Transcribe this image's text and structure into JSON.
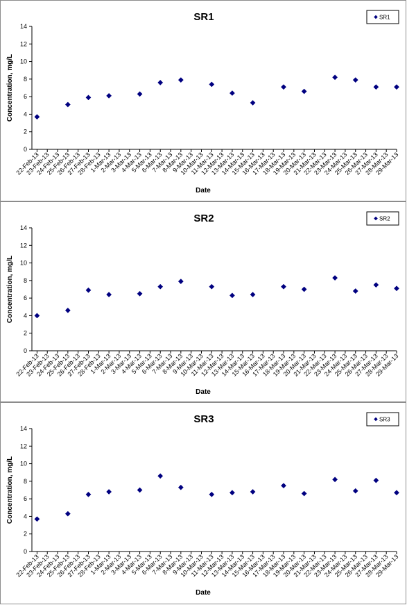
{
  "chart_data": [
    {
      "type": "scatter",
      "title": "SR1",
      "xlabel": "Date",
      "ylabel": "Concentration, mg/L",
      "ylim": [
        0,
        14
      ],
      "yticks": [
        "0",
        "2",
        "4",
        "6",
        "8",
        "10",
        "12",
        "14"
      ],
      "grid": false,
      "legend_position": "top-right",
      "marker_color": "#000080",
      "x_ticks": [
        "22-Feb-13",
        "23-Feb-13",
        "24-Feb-13",
        "25-Feb-13",
        "26-Feb-13",
        "27-Feb-13",
        "28-Feb-13",
        "1-Mar-13",
        "2-Mar-13",
        "3-Mar-13",
        "4-Mar-13",
        "5-Mar-13",
        "6-Mar-13",
        "7-Mar-13",
        "8-Mar-13",
        "9-Mar-13",
        "10-Mar-13",
        "11-Mar-13",
        "12-Mar-13",
        "13-Mar-13",
        "14-Mar-13",
        "15-Mar-13",
        "16-Mar-13",
        "17-Mar-13",
        "18-Mar-13",
        "19-Mar-13",
        "20-Mar-13",
        "21-Mar-13",
        "22-Mar-13",
        "23-Mar-13",
        "24-Mar-13",
        "25-Mar-13",
        "26-Mar-13",
        "27-Mar-13",
        "28-Mar-13",
        "29-Mar-13"
      ],
      "series": [
        {
          "name": "SR1",
          "points": [
            {
              "x": "22-Feb-13",
              "y": 3.7
            },
            {
              "x": "25-Feb-13",
              "y": 5.1
            },
            {
              "x": "27-Feb-13",
              "y": 5.9
            },
            {
              "x": "1-Mar-13",
              "y": 6.1
            },
            {
              "x": "4-Mar-13",
              "y": 6.3
            },
            {
              "x": "6-Mar-13",
              "y": 7.6
            },
            {
              "x": "8-Mar-13",
              "y": 7.9
            },
            {
              "x": "11-Mar-13",
              "y": 7.4
            },
            {
              "x": "13-Mar-13",
              "y": 6.4
            },
            {
              "x": "15-Mar-13",
              "y": 5.3
            },
            {
              "x": "18-Mar-13",
              "y": 7.1
            },
            {
              "x": "20-Mar-13",
              "y": 6.6
            },
            {
              "x": "23-Mar-13",
              "y": 8.2
            },
            {
              "x": "25-Mar-13",
              "y": 7.9
            },
            {
              "x": "27-Mar-13",
              "y": 7.1
            },
            {
              "x": "29-Mar-13",
              "y": 7.1
            }
          ]
        }
      ]
    },
    {
      "type": "scatter",
      "title": "SR2",
      "xlabel": "Date",
      "ylabel": "Concentration, mg/L",
      "ylim": [
        0,
        14
      ],
      "yticks": [
        "0",
        "2",
        "4",
        "6",
        "8",
        "10",
        "12",
        "14"
      ],
      "grid": false,
      "legend_position": "top-right",
      "marker_color": "#000080",
      "x_ticks": [
        "22-Feb-13",
        "23-Feb-13",
        "24-Feb-13",
        "25-Feb-13",
        "26-Feb-13",
        "27-Feb-13",
        "28-Feb-13",
        "1-Mar-13",
        "2-Mar-13",
        "3-Mar-13",
        "4-Mar-13",
        "5-Mar-13",
        "6-Mar-13",
        "7-Mar-13",
        "8-Mar-13",
        "9-Mar-13",
        "10-Mar-13",
        "11-Mar-13",
        "12-Mar-13",
        "13-Mar-13",
        "14-Mar-13",
        "15-Mar-13",
        "16-Mar-13",
        "17-Mar-13",
        "18-Mar-13",
        "19-Mar-13",
        "20-Mar-13",
        "21-Mar-13",
        "22-Mar-13",
        "23-Mar-13",
        "24-Mar-13",
        "25-Mar-13",
        "26-Mar-13",
        "27-Mar-13",
        "28-Mar-13",
        "29-Mar-13"
      ],
      "series": [
        {
          "name": "SR2",
          "points": [
            {
              "x": "22-Feb-13",
              "y": 4.0
            },
            {
              "x": "25-Feb-13",
              "y": 4.6
            },
            {
              "x": "27-Feb-13",
              "y": 6.9
            },
            {
              "x": "1-Mar-13",
              "y": 6.4
            },
            {
              "x": "4-Mar-13",
              "y": 6.5
            },
            {
              "x": "6-Mar-13",
              "y": 7.3
            },
            {
              "x": "8-Mar-13",
              "y": 7.9
            },
            {
              "x": "11-Mar-13",
              "y": 7.3
            },
            {
              "x": "13-Mar-13",
              "y": 6.3
            },
            {
              "x": "15-Mar-13",
              "y": 6.4
            },
            {
              "x": "18-Mar-13",
              "y": 7.3
            },
            {
              "x": "20-Mar-13",
              "y": 7.0
            },
            {
              "x": "23-Mar-13",
              "y": 8.3
            },
            {
              "x": "25-Mar-13",
              "y": 6.8
            },
            {
              "x": "27-Mar-13",
              "y": 7.5
            },
            {
              "x": "29-Mar-13",
              "y": 7.1
            }
          ]
        }
      ]
    },
    {
      "type": "scatter",
      "title": "SR3",
      "xlabel": "Date",
      "ylabel": "Concentration, mg/L",
      "ylim": [
        0,
        14
      ],
      "yticks": [
        "0",
        "2",
        "4",
        "6",
        "8",
        "10",
        "12",
        "14"
      ],
      "grid": false,
      "legend_position": "top-right",
      "marker_color": "#000080",
      "x_ticks": [
        "22-Feb-13",
        "23-Feb-13",
        "24-Feb-13",
        "25-Feb-13",
        "26-Feb-13",
        "27-Feb-13",
        "28-Feb-13",
        "1-Mar-13",
        "2-Mar-13",
        "3-Mar-13",
        "4-Mar-13",
        "5-Mar-13",
        "6-Mar-13",
        "7-Mar-13",
        "8-Mar-13",
        "9-Mar-13",
        "10-Mar-13",
        "11-Mar-13",
        "12-Mar-13",
        "13-Mar-13",
        "14-Mar-13",
        "15-Mar-13",
        "16-Mar-13",
        "17-Mar-13",
        "18-Mar-13",
        "19-Mar-13",
        "20-Mar-13",
        "21-Mar-13",
        "22-Mar-13",
        "23-Mar-13",
        "24-Mar-13",
        "25-Mar-13",
        "26-Mar-13",
        "27-Mar-13",
        "28-Mar-13",
        "29-Mar-13"
      ],
      "series": [
        {
          "name": "SR3",
          "points": [
            {
              "x": "22-Feb-13",
              "y": 3.7
            },
            {
              "x": "25-Feb-13",
              "y": 4.3
            },
            {
              "x": "27-Feb-13",
              "y": 6.5
            },
            {
              "x": "1-Mar-13",
              "y": 6.8
            },
            {
              "x": "4-Mar-13",
              "y": 7.0
            },
            {
              "x": "6-Mar-13",
              "y": 8.6
            },
            {
              "x": "8-Mar-13",
              "y": 7.3
            },
            {
              "x": "11-Mar-13",
              "y": 6.5
            },
            {
              "x": "13-Mar-13",
              "y": 6.7
            },
            {
              "x": "15-Mar-13",
              "y": 6.8
            },
            {
              "x": "18-Mar-13",
              "y": 7.5
            },
            {
              "x": "20-Mar-13",
              "y": 6.6
            },
            {
              "x": "23-Mar-13",
              "y": 8.2
            },
            {
              "x": "25-Mar-13",
              "y": 6.9
            },
            {
              "x": "27-Mar-13",
              "y": 8.1
            },
            {
              "x": "29-Mar-13",
              "y": 6.7
            }
          ]
        }
      ]
    }
  ]
}
